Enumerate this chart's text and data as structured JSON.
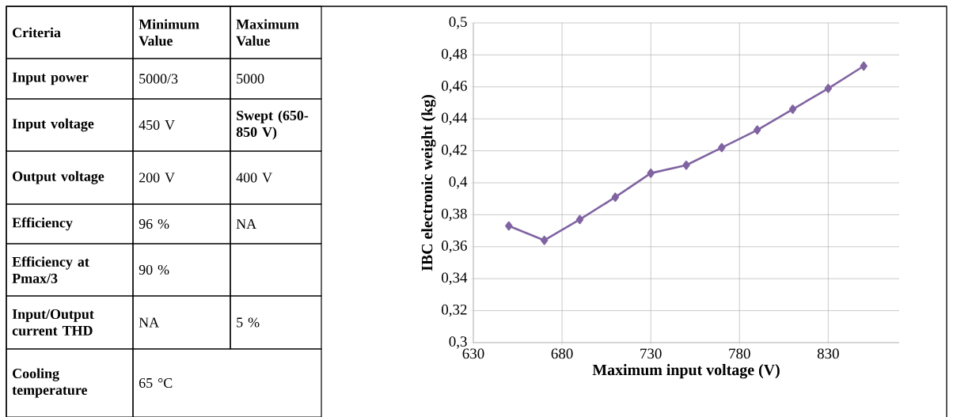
{
  "chart_data": [
    {
      "type": "other",
      "annotations": [
        "Criteria",
        "Minimum Value",
        "Maximum Value",
        "Input power",
        "5000/3",
        "5000",
        "Input voltage",
        "450 V",
        "Swept (650-850 V)",
        "Output voltage",
        "200 V",
        "400 V",
        "Efficiency",
        "96 %",
        "NA",
        "Efficiency at Pmax/3",
        "90 %",
        "Input/Output current THD",
        "NA",
        "5 %",
        "Cooling temperature",
        "65 °C"
      ]
    },
    {
      "type": "line",
      "xlabel": "Maximum input voltage (V)",
      "ylabel": "IBC electronic weight (kg)",
      "x": [
        650,
        670,
        690,
        710,
        730,
        750,
        770,
        790,
        810,
        830,
        850
      ],
      "series": [
        {
          "color": "#8064a2",
          "values": [
            0.373,
            0.364,
            0.377,
            0.391,
            0.406,
            0.411,
            0.422,
            0.433,
            0.446,
            0.459,
            0.473
          ]
        }
      ],
      "xlim": [
        630,
        870
      ],
      "ylim": [
        0.3,
        0.5
      ],
      "xticks": [
        630,
        680,
        730,
        780,
        830
      ],
      "yticks": [
        {
          "value": 0.3,
          "label": "0,3"
        },
        {
          "value": 0.32,
          "label": "0,32"
        },
        {
          "value": 0.34,
          "label": "0,34"
        },
        {
          "value": 0.36,
          "label": "0,36"
        },
        {
          "value": 0.38,
          "label": "0,38"
        },
        {
          "value": 0.4,
          "label": "0,4"
        },
        {
          "value": 0.42,
          "label": "0,42"
        },
        {
          "value": 0.44,
          "label": "0,44"
        },
        {
          "value": 0.46,
          "label": "0,46"
        },
        {
          "value": 0.48,
          "label": "0,48"
        },
        {
          "value": 0.5,
          "label": "0,5"
        }
      ],
      "grid": true,
      "marker": "diamond"
    }
  ]
}
